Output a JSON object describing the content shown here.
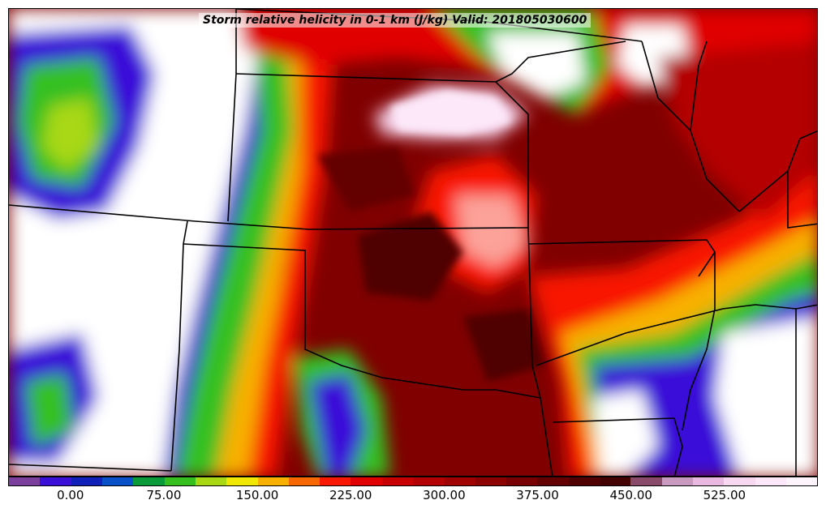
{
  "map": {
    "title": "Storm relative helicity in 0-1 km (J/kg) Valid: 201805030600",
    "field": "storm-relative-helicity",
    "units": "J/kg",
    "valid_time": "201805030600"
  },
  "colorbar": {
    "colors": [
      "#7b3f9e",
      "#3a10d8",
      "#1020b8",
      "#0a50c8",
      "#0a9a3a",
      "#36c020",
      "#a8d814",
      "#f0e800",
      "#f8b000",
      "#f86800",
      "#f81800",
      "#e00000",
      "#c80000",
      "#b40000",
      "#a00000",
      "#8c0000",
      "#780000",
      "#640000",
      "#500000",
      "#420000",
      "#8a4a6a",
      "#c89ac0",
      "#e8b8e0",
      "#f8d8f0",
      "#fce8f8",
      "#fff4fc"
    ],
    "tick_labels": [
      {
        "label": "0.00",
        "value": 0
      },
      {
        "label": "75.00",
        "value": 75
      },
      {
        "label": "150.00",
        "value": 150
      },
      {
        "label": "225.00",
        "value": 225
      },
      {
        "label": "300.00",
        "value": 300
      },
      {
        "label": "375.00",
        "value": 375
      },
      {
        "label": "450.00",
        "value": 450
      },
      {
        "label": "525.00",
        "value": 525
      }
    ],
    "range_min": -50,
    "range_max": 600
  }
}
